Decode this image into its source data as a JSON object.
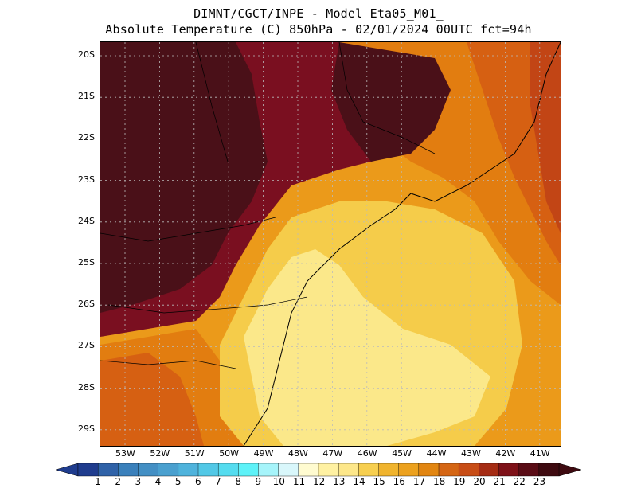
{
  "header": {
    "line1": "DIMNT/CGCT/INPE -  Model Eta05_M01_",
    "line2": "Absolute Temperature (C) 850hPa -  02/01/2024 00UTC fct=94h"
  },
  "map": {
    "lat_labels": [
      "20S",
      "21S",
      "22S",
      "23S",
      "24S",
      "25S",
      "26S",
      "27S",
      "28S",
      "29S"
    ],
    "lon_labels": [
      "53W",
      "52W",
      "51W",
      "50W",
      "49W",
      "48W",
      "47W",
      "46W",
      "45W",
      "44W",
      "43W",
      "42W",
      "41W"
    ],
    "gridlines": "dotted",
    "palette": {
      "t14": "#fbe88a",
      "t15": "#f5cc4a",
      "t16": "#efb02a",
      "t17": "#eb9a1a",
      "t18": "#e27d10",
      "t19": "#d66012",
      "t20": "#c24515",
      "t21": "#9e2614",
      "t22": "#7a0f20",
      "t23": "#4a1018"
    }
  },
  "colorbar": {
    "labels": [
      "1",
      "2",
      "3",
      "4",
      "5",
      "6",
      "7",
      "8",
      "9",
      "10",
      "11",
      "12",
      "13",
      "14",
      "15",
      "16",
      "17",
      "18",
      "19",
      "20",
      "21",
      "22",
      "23"
    ],
    "colors": [
      "#1f3c8e",
      "#2f62a8",
      "#3a80bb",
      "#438fc4",
      "#4aa0cf",
      "#4fb3dc",
      "#52c8e6",
      "#55dcef",
      "#5ef2f8",
      "#a6f4fa",
      "#d9f7fb",
      "#fffbd0",
      "#fff1a2",
      "#fde78a",
      "#f7cf50",
      "#f0b42e",
      "#eca11e",
      "#e28612",
      "#d56614",
      "#c84d16",
      "#a52c14",
      "#7e1118",
      "#5a0c16",
      "#3e0a10"
    ]
  }
}
